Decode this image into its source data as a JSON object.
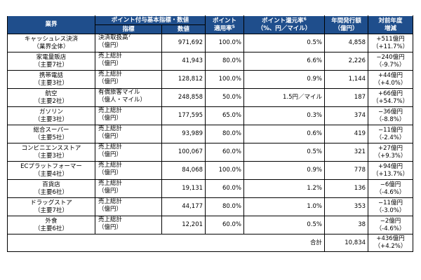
{
  "headers": {
    "industry": "業界",
    "basis_group": "ポイント付与基本指標・数値",
    "metric": "指標",
    "value": "数値",
    "rate_l1": "ポイント",
    "rate_l2": "適用率",
    "rate_sup": "5",
    "return_l1": "ポイント還元率",
    "return_sup": "6",
    "return_l2": "（%、円／マイル）",
    "issue_l1": "年間発行額",
    "issue_l2": "（億円）",
    "yoy_l1": "対前年度",
    "yoy_l2": "増減"
  },
  "rows": [
    {
      "industry": "キャッシュレス決済",
      "sub": "（業界全体）",
      "metric": "決済取扱高",
      "metric_sup": "7",
      "unit": "（億円）",
      "value": "971,692",
      "rate": "100.0%",
      "ret": "0.5%",
      "issue": "4,858",
      "chg": "+511億円",
      "chg_pct": "（+11.7%）"
    },
    {
      "industry": "家電量販店",
      "sub": "（主要7社）",
      "metric": "売上総計",
      "metric_sup": "",
      "unit": "（億円）",
      "value": "41,943",
      "rate": "80.0%",
      "ret": "6.6%",
      "issue": "2,226",
      "chg": "−240億円",
      "chg_pct": "（-9.7%）"
    },
    {
      "industry": "携帯電話",
      "sub": "（主要3社）",
      "metric": "売上総計",
      "metric_sup": "",
      "unit": "（億円）",
      "value": "128,812",
      "rate": "100.0%",
      "ret": "0.9%",
      "issue": "1,144",
      "chg": "+44億円",
      "chg_pct": "（+4.0%）"
    },
    {
      "industry": "航空",
      "sub": "（主要2社）",
      "metric": "有償旅客マイル",
      "metric_sup": "",
      "unit": "（億人・マイル）",
      "value": "248,858",
      "rate": "50.0%",
      "ret": "1.5円／マイル",
      "issue": "187",
      "chg": "+66億円",
      "chg_pct": "（+54.7%）"
    },
    {
      "industry": "ガソリン",
      "sub": "（主要3社）",
      "metric": "売上総計",
      "metric_sup": "",
      "unit": "（億円）",
      "value": "177,595",
      "rate": "65.0%",
      "ret": "0.3%",
      "issue": "374",
      "chg": "−36億円",
      "chg_pct": "（-8.8%）"
    },
    {
      "industry": "総合スーパー",
      "sub": "（主要5社）",
      "metric": "売上総計",
      "metric_sup": "",
      "unit": "（億円）",
      "value": "93,989",
      "rate": "80.0%",
      "ret": "0.6%",
      "issue": "419",
      "chg": "−11億円",
      "chg_pct": "（-2.4%）"
    },
    {
      "industry": "コンビニエンスストア",
      "sub": "（主要3社）",
      "metric": "売上総計",
      "metric_sup": "",
      "unit": "（億円）",
      "value": "100,067",
      "rate": "60.0%",
      "ret": "0.5%",
      "issue": "321",
      "chg": "+27億円",
      "chg_pct": "（+9.3%）"
    },
    {
      "industry": "ECプラットフォーマー",
      "sub": "（主要4社）",
      "metric": "売上総計",
      "metric_sup": "",
      "unit": "（億円）",
      "value": "84,068",
      "rate": "100.0%",
      "ret": "0.9%",
      "issue": "778",
      "chg": "+94億円",
      "chg_pct": "（+13.7%）"
    },
    {
      "industry": "百貨店",
      "sub": "（主要6社）",
      "metric": "売上総計",
      "metric_sup": "",
      "unit": "（億円）",
      "value": "19,131",
      "rate": "60.0%",
      "ret": "1.2%",
      "issue": "136",
      "chg": "−6億円",
      "chg_pct": "（-4.6%）"
    },
    {
      "industry": "ドラッグストア",
      "sub": "（主要7社）",
      "metric": "売上総計",
      "metric_sup": "",
      "unit": "（億円）",
      "value": "44,177",
      "rate": "80.0%",
      "ret": "1.0%",
      "issue": "353",
      "chg": "−11億円",
      "chg_pct": "（-3.0%）"
    },
    {
      "industry": "外食",
      "sub": "（主要6社）",
      "metric": "売上総計",
      "metric_sup": "",
      "unit": "（億円）",
      "value": "12,201",
      "rate": "60.0%",
      "ret": "0.5%",
      "issue": "38",
      "chg": "−2億円",
      "chg_pct": "（-4.6%）"
    }
  ],
  "total": {
    "label": "合計",
    "issue": "10,834",
    "chg": "+436億円",
    "chg_pct": "（+4.2%）"
  }
}
